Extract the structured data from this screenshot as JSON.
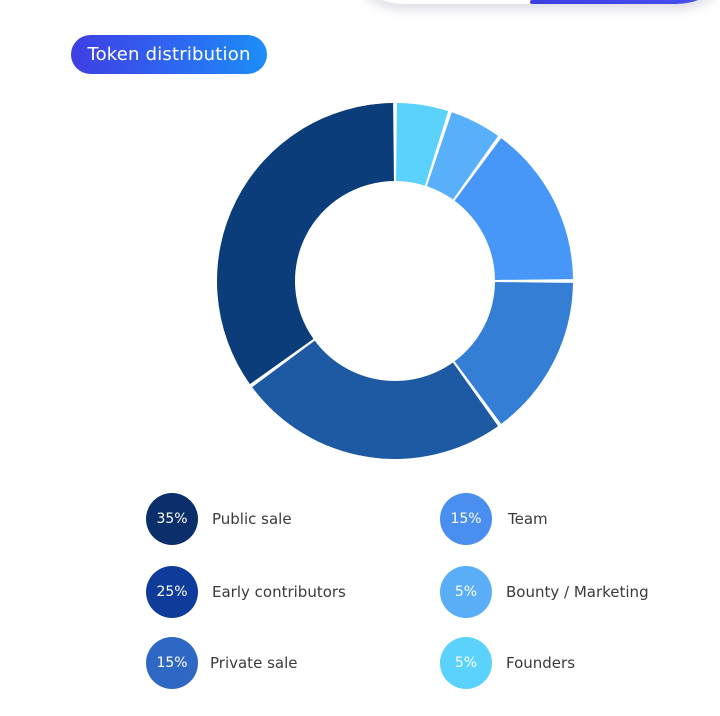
{
  "title": "Token distribution",
  "chart_data": {
    "type": "pie",
    "style": "donut",
    "start_angle_deg": 0,
    "clockwise": false,
    "slices": [
      {
        "label": "Public sale",
        "value": 35,
        "value_label": "35%",
        "color": "#0b3d7a",
        "legend_color": "#0b2f6b"
      },
      {
        "label": "Early contributors",
        "value": 25,
        "value_label": "25%",
        "color": "#1e5aa3",
        "legend_color": "#0f3b9b"
      },
      {
        "label": "Private sale",
        "value": 15,
        "value_label": "15%",
        "color": "#347ed5",
        "legend_color": "#2f68c4"
      },
      {
        "label": "Team",
        "value": 15,
        "value_label": "15%",
        "color": "#4697f7",
        "legend_color": "#4a8ff0"
      },
      {
        "label": "Bounty / Marketing",
        "value": 5,
        "value_label": "5%",
        "color": "#59b0fa",
        "legend_color": "#5aaef7"
      },
      {
        "label": "Founders",
        "value": 5,
        "value_label": "5%",
        "color": "#5ad2fb",
        "legend_color": "#5ad2fb"
      }
    ]
  }
}
